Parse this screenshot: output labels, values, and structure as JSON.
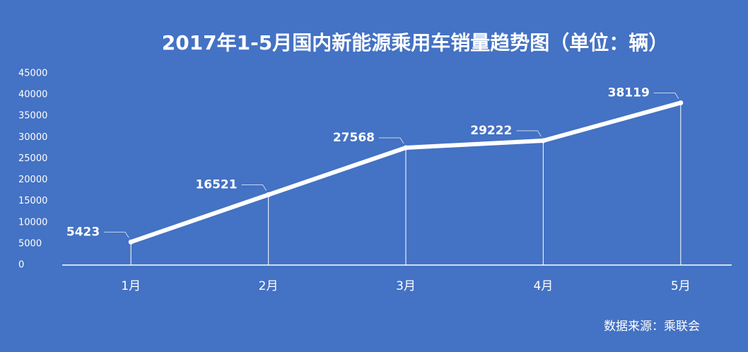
{
  "chart_data": {
    "type": "line",
    "title": "2017年1-5月国内新能源乘用车销量趋势图（单位：辆）",
    "categories": [
      "1月",
      "2月",
      "3月",
      "4月",
      "5月"
    ],
    "values": [
      5423,
      16521,
      27568,
      29222,
      38119
    ],
    "color": "#ffffff",
    "ylim": [
      0,
      45000
    ],
    "yticks": [
      0,
      5000,
      10000,
      15000,
      20000,
      25000,
      30000,
      35000,
      40000,
      45000
    ],
    "source": "数据来源：乘联会"
  }
}
